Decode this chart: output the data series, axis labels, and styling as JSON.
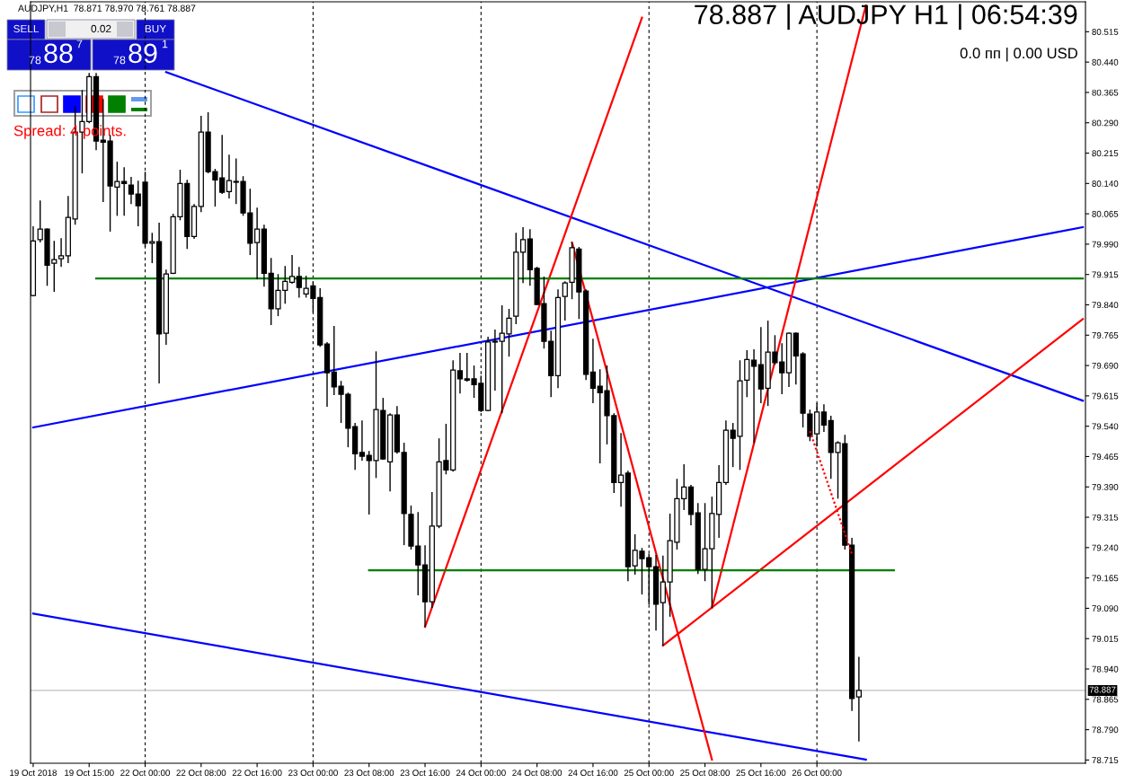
{
  "chart_data": {
    "type": "candlestick",
    "title": "78.887 | AUDJPY H1 | 06:54:39",
    "subtitle": "0.0 пп | 0.00 USD",
    "color": "#000000",
    "categories": [
      "19 Oct 2018",
      null,
      null,
      null,
      null,
      null,
      null,
      null,
      "19 Oct 15:00",
      null,
      null,
      null,
      null,
      null,
      null,
      null,
      "22 Oct 00:00",
      null,
      null,
      null,
      null,
      null,
      null,
      null,
      "22 Oct 08:00",
      null,
      null,
      null,
      null,
      null,
      null,
      null,
      "22 Oct 16:00",
      null,
      null,
      null,
      null,
      null,
      null,
      null,
      "23 Oct 00:00",
      null,
      null,
      null,
      null,
      null,
      null,
      null,
      "23 Oct 08:00",
      null,
      null,
      null,
      null,
      null,
      null,
      null,
      "23 Oct 16:00",
      null,
      null,
      null,
      null,
      null,
      null,
      null,
      "24 Oct 00:00",
      null,
      null,
      null,
      null,
      null,
      null,
      null,
      "24 Oct 08:00",
      null,
      null,
      null,
      null,
      null,
      null,
      null,
      "24 Oct 16:00",
      null,
      null,
      null,
      null,
      null,
      null,
      null,
      "25 Oct 00:00",
      null,
      null,
      null,
      null,
      null,
      null,
      null,
      "25 Oct 08:00",
      null,
      null,
      null,
      null,
      null,
      null,
      null,
      "25 Oct 16:00",
      null,
      null,
      null,
      null,
      null,
      null,
      null,
      "26 Oct 00:00",
      null,
      null,
      null,
      null,
      null,
      null,
      null,
      null,
      null,
      null,
      null,
      null,
      null,
      null,
      null,
      null,
      null,
      null,
      null,
      null,
      null,
      null,
      null,
      null,
      null,
      null,
      null,
      null,
      null,
      null,
      null,
      null,
      null,
      null,
      null,
      null,
      null,
      null
    ],
    "ohlc": [
      [
        79.863,
        80.034,
        79.861,
        79.998
      ],
      [
        80.001,
        80.098,
        79.994,
        80.027
      ],
      [
        80.027,
        80.029,
        79.887,
        79.938
      ],
      [
        79.943,
        79.998,
        79.872,
        79.952
      ],
      [
        79.954,
        80.005,
        79.934,
        79.961
      ],
      [
        79.961,
        80.109,
        79.943,
        80.056
      ],
      [
        80.052,
        80.331,
        80.038,
        80.267
      ],
      [
        80.267,
        80.371,
        80.165,
        80.293
      ],
      [
        80.293,
        80.413,
        80.289,
        80.404
      ],
      [
        80.404,
        80.413,
        80.222,
        80.245
      ],
      [
        80.247,
        80.349,
        80.094,
        80.242
      ],
      [
        80.245,
        80.26,
        80.021,
        80.134
      ],
      [
        80.131,
        80.194,
        80.06,
        80.145
      ],
      [
        80.145,
        80.18,
        80.06,
        80.14
      ],
      [
        80.136,
        80.156,
        80.089,
        80.114
      ],
      [
        80.114,
        80.147,
        80.034,
        80.085
      ],
      [
        80.143,
        80.169,
        79.983,
        79.992
      ],
      [
        79.992,
        80.018,
        79.943,
        79.996
      ],
      [
        79.996,
        80.043,
        79.646,
        79.768
      ],
      [
        79.77,
        79.927,
        79.741,
        79.916
      ],
      [
        79.918,
        80.065,
        79.916,
        80.058
      ],
      [
        80.058,
        80.174,
        80.049,
        80.14
      ],
      [
        80.14,
        80.149,
        79.978,
        80.009
      ],
      [
        80.009,
        80.089,
        80.003,
        80.083
      ],
      [
        80.083,
        80.307,
        80.069,
        80.267
      ],
      [
        80.267,
        80.316,
        80.165,
        80.169
      ],
      [
        80.169,
        80.176,
        80.083,
        80.149
      ],
      [
        80.154,
        80.26,
        80.114,
        80.118
      ],
      [
        80.12,
        80.211,
        80.103,
        80.147
      ],
      [
        80.143,
        80.202,
        80.089,
        80.145
      ],
      [
        80.145,
        80.158,
        80.06,
        80.067
      ],
      [
        80.067,
        80.127,
        79.963,
        79.992
      ],
      [
        79.994,
        80.08,
        79.903,
        80.027
      ],
      [
        80.027,
        80.038,
        79.885,
        79.918
      ],
      [
        79.918,
        79.956,
        79.79,
        79.83
      ],
      [
        79.83,
        79.916,
        79.812,
        79.876
      ],
      [
        79.876,
        79.936,
        79.843,
        79.898
      ],
      [
        79.896,
        79.963,
        79.892,
        79.91
      ],
      [
        79.91,
        79.934,
        79.858,
        79.883
      ],
      [
        79.867,
        79.912,
        79.858,
        79.881
      ],
      [
        79.887,
        79.898,
        79.821,
        79.856
      ],
      [
        79.858,
        79.881,
        79.736,
        79.741
      ],
      [
        79.743,
        79.748,
        79.588,
        79.672
      ],
      [
        79.674,
        79.788,
        79.617,
        79.637
      ],
      [
        79.639,
        79.652,
        79.548,
        79.619
      ],
      [
        79.619,
        79.623,
        79.488,
        79.535
      ],
      [
        79.539,
        79.548,
        79.432,
        79.472
      ],
      [
        79.475,
        79.554,
        79.455,
        79.466
      ],
      [
        79.468,
        79.479,
        79.322,
        79.455
      ],
      [
        79.455,
        79.725,
        79.412,
        79.581
      ],
      [
        79.579,
        79.61,
        79.457,
        79.459
      ],
      [
        79.452,
        79.572,
        79.379,
        79.568
      ],
      [
        79.568,
        79.59,
        79.472,
        79.477
      ],
      [
        79.475,
        79.499,
        79.246,
        79.324
      ],
      [
        79.322,
        79.344,
        79.235,
        79.244
      ],
      [
        79.244,
        79.328,
        79.122,
        79.197
      ],
      [
        79.197,
        79.246,
        79.044,
        79.106
      ],
      [
        79.106,
        79.377,
        79.091,
        79.293
      ],
      [
        79.293,
        79.51,
        79.288,
        79.452
      ],
      [
        79.455,
        79.546,
        79.421,
        79.432
      ],
      [
        79.432,
        79.703,
        79.428,
        79.679
      ],
      [
        79.677,
        79.721,
        79.621,
        79.657
      ],
      [
        79.657,
        79.721,
        79.65,
        79.654
      ],
      [
        79.657,
        79.69,
        79.61,
        79.643
      ],
      [
        79.646,
        79.665,
        79.575,
        79.579
      ],
      [
        79.579,
        79.761,
        79.577,
        79.748
      ],
      [
        79.748,
        79.779,
        79.628,
        79.75
      ],
      [
        79.75,
        79.839,
        79.572,
        79.77
      ],
      [
        79.768,
        79.83,
        79.712,
        79.807
      ],
      [
        79.812,
        80.018,
        79.792,
        79.97
      ],
      [
        79.97,
        80.032,
        79.894,
        80.001
      ],
      [
        80.003,
        80.027,
        79.887,
        79.927
      ],
      [
        79.93,
        79.934,
        79.839,
        79.841
      ],
      [
        79.843,
        79.91,
        79.732,
        79.75
      ],
      [
        79.75,
        79.776,
        79.612,
        79.665
      ],
      [
        79.665,
        79.878,
        79.634,
        79.858
      ],
      [
        79.861,
        79.898,
        79.801,
        79.894
      ],
      [
        79.896,
        79.994,
        79.854,
        79.981
      ],
      [
        79.978,
        79.983,
        79.805,
        79.872
      ],
      [
        79.874,
        79.878,
        79.654,
        79.668
      ],
      [
        79.674,
        79.756,
        79.597,
        79.634
      ],
      [
        79.639,
        79.681,
        79.448,
        79.623
      ],
      [
        79.628,
        79.69,
        79.495,
        79.566
      ],
      [
        79.566,
        79.572,
        79.375,
        79.401
      ],
      [
        79.401,
        79.523,
        79.341,
        79.419
      ],
      [
        79.424,
        79.43,
        79.157,
        79.193
      ],
      [
        79.195,
        79.273,
        79.173,
        79.233
      ],
      [
        79.231,
        79.239,
        79.124,
        79.213
      ],
      [
        79.215,
        79.224,
        79.1,
        79.193
      ],
      [
        79.193,
        79.222,
        79.035,
        79.1
      ],
      [
        79.104,
        79.22,
        78.998,
        79.155
      ],
      [
        79.155,
        79.324,
        79.069,
        79.257
      ],
      [
        79.253,
        79.41,
        79.235,
        79.361
      ],
      [
        79.361,
        79.446,
        79.333,
        79.39
      ],
      [
        79.39,
        79.395,
        79.295,
        79.322
      ],
      [
        79.326,
        79.35,
        79.175,
        79.186
      ],
      [
        79.186,
        79.35,
        79.157,
        79.237
      ],
      [
        79.237,
        79.366,
        79.091,
        79.324
      ],
      [
        79.322,
        79.444,
        79.264,
        79.401
      ],
      [
        79.401,
        79.554,
        79.395,
        79.53
      ],
      [
        79.53,
        79.548,
        79.439,
        79.51
      ],
      [
        79.515,
        79.703,
        79.432,
        79.652
      ],
      [
        79.654,
        79.728,
        79.612,
        79.705
      ],
      [
        79.703,
        79.73,
        79.499,
        79.688
      ],
      [
        79.692,
        79.785,
        79.597,
        79.632
      ],
      [
        79.634,
        79.801,
        79.59,
        79.723
      ],
      [
        79.723,
        79.765,
        79.692,
        79.697
      ],
      [
        79.699,
        79.745,
        79.619,
        79.672
      ],
      [
        79.672,
        79.772,
        79.637,
        79.77
      ],
      [
        79.77,
        79.772,
        79.643,
        79.714
      ],
      [
        79.719,
        79.723,
        79.537,
        79.572
      ],
      [
        79.57,
        79.581,
        79.503,
        79.515
      ],
      [
        79.521,
        79.597,
        79.49,
        79.575
      ],
      [
        79.575,
        79.594,
        79.526,
        79.543
      ],
      [
        79.554,
        79.566,
        79.41,
        79.475
      ],
      [
        79.475,
        79.503,
        79.361,
        79.499
      ],
      [
        79.497,
        79.519,
        79.235,
        79.246
      ],
      [
        79.246,
        79.264,
        78.836,
        78.867
      ],
      [
        78.871,
        78.97,
        78.761,
        78.887
      ],
      null,
      null,
      null,
      null,
      null,
      null,
      null,
      null,
      null,
      null,
      null,
      null,
      null,
      null,
      null,
      null,
      null,
      null,
      null,
      null,
      null,
      null,
      null,
      null,
      null,
      null,
      null,
      null,
      null,
      null,
      null,
      null
    ],
    "series": [
      {
        "type": "line",
        "color": "#0000ff",
        "values": [
          null,
          null,
          null,
          null,
          null,
          null,
          null,
          null,
          null,
          null,
          null,
          null,
          null,
          null,
          null,
          null,
          null,
          null,
          null,
          80.415,
          null,
          null,
          null,
          null,
          null,
          null,
          null,
          null,
          null,
          null,
          null,
          null,
          null,
          null,
          null,
          null,
          null,
          null,
          null,
          null,
          null,
          null,
          null,
          null,
          null,
          null,
          null,
          null,
          null,
          null,
          null,
          null,
          null,
          null,
          null,
          null,
          null,
          null,
          null,
          null,
          null,
          null,
          null,
          null,
          null,
          null,
          null,
          null,
          null,
          null,
          null,
          null,
          null,
          null,
          null,
          null,
          null,
          null,
          null,
          null,
          null,
          null,
          null,
          null,
          null,
          null,
          null,
          null,
          null,
          null,
          null,
          null,
          null,
          null,
          null,
          null,
          null,
          null,
          null,
          null,
          null,
          null,
          null,
          null,
          null,
          null,
          null,
          null,
          null,
          null,
          null,
          null,
          null,
          null,
          null,
          null,
          null,
          null,
          null,
          null,
          null,
          null,
          null,
          null,
          null,
          null,
          null,
          null,
          null,
          null,
          null,
          null,
          null,
          null,
          null,
          null,
          null,
          null,
          null,
          null,
          null,
          null,
          null,
          null,
          null,
          null,
          null,
          null,
          null,
          null,
          79.603
        ]
      },
      {
        "type": "line",
        "color": "#0000ff",
        "values": [
          79.537,
          null,
          null,
          null,
          null,
          null,
          null,
          null,
          null,
          null,
          null,
          null,
          null,
          null,
          null,
          null,
          null,
          null,
          null,
          null,
          null,
          null,
          null,
          null,
          null,
          null,
          null,
          null,
          null,
          null,
          null,
          null,
          null,
          null,
          null,
          null,
          null,
          null,
          null,
          null,
          null,
          null,
          null,
          null,
          null,
          null,
          null,
          null,
          null,
          null,
          null,
          null,
          null,
          null,
          null,
          null,
          null,
          null,
          null,
          null,
          null,
          null,
          null,
          null,
          null,
          null,
          null,
          null,
          null,
          null,
          null,
          null,
          null,
          null,
          null,
          null,
          null,
          null,
          null,
          null,
          null,
          null,
          null,
          null,
          null,
          null,
          null,
          null,
          null,
          null,
          null,
          null,
          null,
          null,
          null,
          null,
          null,
          null,
          null,
          null,
          null,
          null,
          null,
          null,
          null,
          null,
          null,
          null,
          null,
          null,
          null,
          null,
          null,
          null,
          null,
          null,
          null,
          null,
          null,
          null,
          null,
          null,
          null,
          null,
          null,
          null,
          null,
          null,
          null,
          null,
          null,
          null,
          null,
          null,
          null,
          null,
          null,
          null,
          null,
          null,
          null,
          null,
          null,
          null,
          null,
          null,
          null,
          null,
          null,
          null,
          80.032
        ]
      },
      {
        "type": "line",
        "color": "#0000ff",
        "values": [
          79.077,
          null,
          null,
          null,
          null,
          null,
          null,
          null,
          null,
          null,
          null,
          null,
          null,
          null,
          null,
          null,
          null,
          null,
          null,
          null,
          null,
          null,
          null,
          null,
          null,
          null,
          null,
          null,
          null,
          null,
          null,
          null,
          null,
          null,
          null,
          null,
          null,
          null,
          null,
          null,
          null,
          null,
          null,
          null,
          null,
          null,
          null,
          null,
          null,
          null,
          null,
          null,
          null,
          null,
          null,
          null,
          null,
          null,
          null,
          null,
          null,
          null,
          null,
          null,
          null,
          null,
          null,
          null,
          null,
          null,
          null,
          null,
          null,
          null,
          null,
          null,
          null,
          null,
          null,
          null,
          null,
          null,
          null,
          null,
          null,
          null,
          null,
          null,
          null,
          null,
          null,
          null,
          null,
          null,
          null,
          null,
          null,
          null,
          null,
          null,
          null,
          null,
          null,
          null,
          null,
          null,
          null,
          null,
          null,
          null,
          null,
          null,
          null,
          null,
          null,
          null,
          null,
          null,
          null,
          78.716,
          null,
          null,
          null,
          null,
          null,
          null,
          null,
          null,
          null,
          null,
          null,
          null,
          null,
          null,
          null,
          null,
          null,
          null,
          null,
          null,
          null,
          null,
          null,
          null,
          null,
          null,
          null,
          null,
          null,
          null,
          null
        ]
      },
      {
        "type": "line",
        "color": "#ff0000",
        "values": [
          null,
          null,
          null,
          null,
          null,
          null,
          null,
          null,
          null,
          null,
          null,
          null,
          null,
          null,
          null,
          null,
          null,
          null,
          null,
          null,
          null,
          null,
          null,
          null,
          null,
          null,
          null,
          null,
          null,
          null,
          null,
          null,
          null,
          null,
          null,
          null,
          null,
          null,
          null,
          null,
          null,
          null,
          null,
          null,
          null,
          null,
          null,
          null,
          null,
          null,
          null,
          null,
          null,
          null,
          null,
          null,
          79.044,
          null,
          null,
          null,
          null,
          null,
          null,
          null,
          null,
          null,
          null,
          null,
          null,
          null,
          null,
          null,
          null,
          null,
          null,
          null,
          null,
          null,
          null,
          null,
          null,
          null,
          null,
          null,
          null,
          null,
          null,
          80.55,
          null,
          null,
          null,
          null,
          null,
          null,
          null,
          null,
          null,
          null,
          null,
          null,
          null,
          null,
          null,
          null,
          null,
          null,
          null,
          null,
          null,
          null,
          null,
          null,
          null,
          null,
          null,
          null,
          null,
          null,
          null,
          null,
          null,
          null,
          null,
          null,
          null,
          null,
          null,
          null,
          null,
          null,
          null,
          null,
          null,
          null,
          null,
          null,
          null,
          null,
          null,
          null,
          null,
          null,
          null,
          null,
          null,
          null,
          null,
          null,
          null,
          null,
          null
        ]
      },
      {
        "type": "line",
        "color": "#ff0000",
        "values": [
          null,
          null,
          null,
          null,
          null,
          null,
          null,
          null,
          null,
          null,
          null,
          null,
          null,
          null,
          null,
          null,
          null,
          null,
          null,
          null,
          null,
          null,
          null,
          null,
          null,
          null,
          null,
          null,
          null,
          null,
          null,
          null,
          null,
          null,
          null,
          null,
          null,
          null,
          null,
          null,
          null,
          null,
          null,
          null,
          null,
          null,
          null,
          null,
          null,
          null,
          null,
          null,
          null,
          null,
          null,
          null,
          null,
          null,
          null,
          null,
          null,
          null,
          null,
          null,
          null,
          null,
          null,
          null,
          null,
          null,
          null,
          null,
          null,
          null,
          null,
          null,
          null,
          79.994,
          null,
          null,
          null,
          null,
          null,
          null,
          null,
          null,
          null,
          null,
          null,
          null,
          null,
          null,
          null,
          null,
          null,
          null,
          null,
          78.716,
          null,
          null,
          null,
          null,
          null,
          null,
          null,
          null,
          null,
          null,
          null,
          null,
          null,
          null,
          null,
          null,
          null,
          null,
          null,
          null,
          null,
          null,
          null,
          null,
          null,
          null,
          null,
          null,
          null,
          null,
          null,
          null,
          null,
          null,
          null,
          null,
          null,
          null,
          null,
          null,
          null,
          null,
          null,
          null,
          null,
          null,
          null,
          null,
          null,
          null,
          null,
          null,
          null
        ]
      },
      {
        "type": "line",
        "color": "#ff0000",
        "values": [
          null,
          null,
          null,
          null,
          null,
          null,
          null,
          null,
          null,
          null,
          null,
          null,
          null,
          null,
          null,
          null,
          null,
          null,
          null,
          null,
          null,
          null,
          null,
          null,
          null,
          null,
          null,
          null,
          null,
          null,
          null,
          null,
          null,
          null,
          null,
          null,
          null,
          null,
          null,
          null,
          null,
          null,
          null,
          null,
          null,
          null,
          null,
          null,
          null,
          null,
          null,
          null,
          null,
          null,
          null,
          null,
          null,
          null,
          null,
          null,
          null,
          null,
          null,
          null,
          null,
          null,
          null,
          null,
          null,
          null,
          null,
          null,
          null,
          null,
          null,
          null,
          null,
          null,
          null,
          null,
          null,
          null,
          null,
          null,
          null,
          null,
          null,
          null,
          null,
          null,
          null,
          null,
          null,
          null,
          null,
          null,
          null,
          79.091,
          null,
          null,
          null,
          null,
          null,
          null,
          null,
          null,
          null,
          null,
          null,
          null,
          null,
          null,
          null,
          null,
          null,
          null,
          null,
          null,
          null,
          80.58,
          null,
          null,
          null,
          null,
          null,
          null,
          null,
          null,
          null,
          null,
          null,
          null,
          null,
          null,
          null,
          null,
          null,
          null,
          null,
          null,
          null,
          null,
          null,
          null,
          null,
          null,
          null,
          null,
          null,
          null,
          null
        ]
      },
      {
        "type": "line",
        "color": "#ff0000",
        "values": [
          null,
          null,
          null,
          null,
          null,
          null,
          null,
          null,
          null,
          null,
          null,
          null,
          null,
          null,
          null,
          null,
          null,
          null,
          null,
          null,
          null,
          null,
          null,
          null,
          null,
          null,
          null,
          null,
          null,
          null,
          null,
          null,
          null,
          null,
          null,
          null,
          null,
          null,
          null,
          null,
          null,
          null,
          null,
          null,
          null,
          null,
          null,
          null,
          null,
          null,
          null,
          null,
          null,
          null,
          null,
          null,
          null,
          null,
          null,
          null,
          null,
          null,
          null,
          null,
          null,
          null,
          null,
          null,
          null,
          null,
          null,
          null,
          null,
          null,
          null,
          null,
          null,
          null,
          null,
          null,
          null,
          null,
          null,
          null,
          null,
          null,
          null,
          null,
          null,
          null,
          78.998,
          null,
          null,
          null,
          null,
          null,
          null,
          null,
          null,
          null,
          null,
          null,
          null,
          null,
          null,
          null,
          null,
          null,
          null,
          null,
          null,
          null,
          null,
          null,
          null,
          null,
          null,
          null,
          null,
          null,
          null,
          null,
          null,
          null,
          null,
          null,
          null,
          null,
          null,
          null,
          null,
          null,
          null,
          null,
          null,
          null,
          null,
          null,
          null,
          null,
          null,
          null,
          null,
          null,
          null,
          null,
          null,
          null,
          null,
          null,
          79.805
        ]
      },
      {
        "type": "line",
        "color": "#ff0000",
        "line_style": "dotted",
        "values": [
          null,
          null,
          null,
          null,
          null,
          null,
          null,
          null,
          null,
          null,
          null,
          null,
          null,
          null,
          null,
          null,
          null,
          null,
          null,
          null,
          null,
          null,
          null,
          null,
          null,
          null,
          null,
          null,
          null,
          null,
          null,
          null,
          null,
          null,
          null,
          null,
          null,
          null,
          null,
          null,
          null,
          null,
          null,
          null,
          null,
          null,
          null,
          null,
          null,
          null,
          null,
          null,
          null,
          null,
          null,
          null,
          null,
          null,
          null,
          null,
          null,
          null,
          null,
          null,
          null,
          null,
          null,
          null,
          null,
          null,
          null,
          null,
          null,
          null,
          null,
          null,
          null,
          null,
          null,
          null,
          null,
          null,
          null,
          null,
          null,
          null,
          null,
          null,
          null,
          null,
          null,
          null,
          null,
          null,
          null,
          null,
          null,
          null,
          null,
          null,
          null,
          null,
          null,
          null,
          null,
          null,
          null,
          null,
          null,
          null,
          null,
          79.528,
          null,
          null,
          null,
          null,
          null,
          79.224,
          null,
          null,
          null,
          null,
          null,
          null,
          null,
          null,
          null,
          null,
          null,
          null,
          null,
          null,
          null,
          null,
          null,
          null,
          null,
          null,
          null,
          null,
          null,
          null,
          null,
          null,
          null,
          null,
          null,
          null,
          null,
          null,
          null
        ]
      },
      {
        "type": "line",
        "color": "#008000",
        "values": [
          null,
          null,
          null,
          null,
          null,
          null,
          null,
          null,
          null,
          79.905,
          null,
          null,
          null,
          null,
          null,
          null,
          null,
          null,
          null,
          null,
          null,
          null,
          null,
          null,
          null,
          null,
          null,
          null,
          null,
          null,
          null,
          null,
          null,
          null,
          null,
          null,
          null,
          null,
          null,
          null,
          null,
          null,
          null,
          null,
          null,
          null,
          null,
          null,
          null,
          null,
          null,
          null,
          null,
          null,
          null,
          null,
          null,
          null,
          null,
          null,
          null,
          null,
          null,
          null,
          null,
          null,
          null,
          null,
          null,
          null,
          null,
          null,
          null,
          null,
          null,
          null,
          null,
          null,
          null,
          null,
          null,
          null,
          null,
          null,
          null,
          null,
          null,
          null,
          null,
          null,
          null,
          null,
          null,
          null,
          null,
          null,
          null,
          null,
          null,
          null,
          null,
          null,
          null,
          null,
          null,
          null,
          null,
          null,
          null,
          null,
          null,
          null,
          null,
          null,
          null,
          null,
          null,
          null,
          null,
          null,
          null,
          null,
          null,
          null,
          null,
          null,
          null,
          null,
          null,
          null,
          null,
          null,
          null,
          null,
          null,
          null,
          null,
          null,
          null,
          null,
          null,
          null,
          null,
          null,
          null,
          null,
          null,
          null,
          null,
          null,
          79.905
        ]
      },
      {
        "type": "line",
        "color": "#008000",
        "values": [
          null,
          null,
          null,
          null,
          null,
          null,
          null,
          null,
          null,
          null,
          null,
          null,
          null,
          null,
          null,
          null,
          null,
          null,
          null,
          null,
          null,
          null,
          null,
          null,
          null,
          null,
          null,
          null,
          null,
          null,
          null,
          null,
          null,
          null,
          null,
          null,
          null,
          null,
          null,
          null,
          null,
          null,
          null,
          null,
          null,
          null,
          null,
          null,
          79.184,
          null,
          null,
          null,
          null,
          null,
          null,
          null,
          null,
          null,
          null,
          null,
          null,
          null,
          null,
          null,
          null,
          null,
          null,
          null,
          null,
          null,
          null,
          null,
          null,
          null,
          null,
          null,
          null,
          null,
          null,
          null,
          null,
          null,
          null,
          null,
          null,
          null,
          null,
          null,
          null,
          null,
          null,
          null,
          null,
          null,
          null,
          null,
          null,
          null,
          null,
          null,
          null,
          null,
          null,
          null,
          null,
          null,
          null,
          null,
          null,
          null,
          null,
          null,
          null,
          null,
          null,
          null,
          null,
          null,
          null,
          null,
          null,
          null,
          null,
          79.184,
          null,
          null,
          null,
          null,
          null,
          null,
          null,
          null,
          null,
          null,
          null,
          null,
          null,
          null,
          null,
          null,
          null,
          null,
          null,
          null,
          null,
          null,
          null,
          null,
          null,
          null,
          null
        ]
      }
    ],
    "ref_lines": [
      {
        "axis": "x",
        "value": "22 Oct 00:00",
        "color": "#000000",
        "line_style": "dashed"
      },
      {
        "axis": "x",
        "value": "23 Oct 00:00",
        "color": "#000000",
        "line_style": "dashed"
      },
      {
        "axis": "x",
        "value": "24 Oct 00:00",
        "color": "#000000",
        "line_style": "dashed"
      },
      {
        "axis": "x",
        "value": "25 Oct 00:00",
        "color": "#000000",
        "line_style": "dashed"
      },
      {
        "axis": "x",
        "value": "26 Oct 00:00",
        "color": "#000000",
        "line_style": "dashed"
      },
      {
        "axis": "y",
        "value": 78.887,
        "label": "78.887",
        "color": "#c0c0c0",
        "line_style": "solid"
      }
    ],
    "ylim": [
      78.707,
      80.589
    ],
    "yticks": [
      78.715,
      {
        "value": 78.79,
        "label": "78.790"
      },
      78.865,
      {
        "value": 78.94,
        "label": "78.940"
      },
      79.015,
      {
        "value": 79.09,
        "label": "79.090"
      },
      79.165,
      {
        "value": 79.24,
        "label": "79.240"
      },
      79.315,
      {
        "value": 79.39,
        "label": "79.390"
      },
      79.465,
      {
        "value": 79.54,
        "label": "79.540"
      },
      79.615,
      {
        "value": 79.69,
        "label": "79.690"
      },
      79.765,
      {
        "value": 79.84,
        "label": "79.840"
      },
      79.915,
      {
        "value": 79.99,
        "label": "79.990"
      },
      80.065,
      {
        "value": 80.14,
        "label": "80.140"
      },
      80.215,
      {
        "value": 80.29,
        "label": "80.290"
      },
      80.365,
      {
        "value": 80.44,
        "label": "80.440"
      },
      80.515
    ],
    "annotations": [
      "AUDJPY,H1  78.871 78.970 78.761 78.887",
      "SELL",
      "0.02",
      "BUY",
      "78",
      "88",
      "7",
      "78",
      "89",
      "1",
      "Spread: 4 points."
    ]
  }
}
